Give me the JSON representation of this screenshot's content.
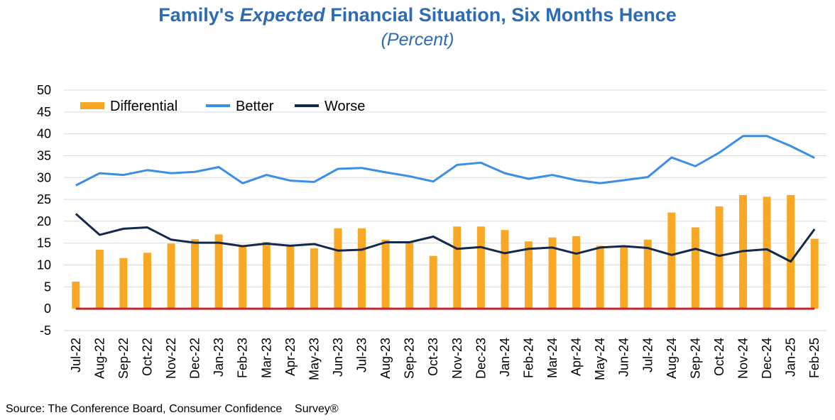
{
  "title_parts": {
    "prefix": "Family's ",
    "emphasis": "Expected",
    "suffix": " Financial Situation, Six Months Hence"
  },
  "subtitle": "(Percent)",
  "source": "Source: The Conference Board, Consumer Confidence    Survey®",
  "colors": {
    "title": "#2e6bb5",
    "differential": "#f9a825",
    "better": "#3a8ee6",
    "worse": "#13294b",
    "zero_line": "#c0282d",
    "grid": "#d9d9d9"
  },
  "chart_data": {
    "type": "bar",
    "title": "Family's Expected Financial Situation, Six Months Hence",
    "subtitle": "(Percent)",
    "xlabel": "",
    "ylabel": "",
    "ylim": [
      -5,
      50
    ],
    "yticks": [
      -5,
      0,
      5,
      10,
      15,
      20,
      25,
      30,
      35,
      40,
      45,
      50
    ],
    "grid": true,
    "legend_position": "top-left",
    "categories": [
      "Jul-22",
      "Aug-22",
      "Sep-22",
      "Oct-22",
      "Nov-22",
      "Dec-22",
      "Jan-23",
      "Feb-23",
      "Mar-23",
      "Apr-23",
      "May-23",
      "Jun-23",
      "Jul-23",
      "Aug-23",
      "Sep-23",
      "Oct-23",
      "Nov-23",
      "Dec-23",
      "Jan-24",
      "Feb-24",
      "Mar-24",
      "Apr-24",
      "May-24",
      "Jun-24",
      "Jul-24",
      "Aug-24",
      "Sep-24",
      "Oct-24",
      "Nov-24",
      "Dec-24",
      "Jan-25",
      "Feb-25"
    ],
    "series": [
      {
        "name": "Differential",
        "type": "bar",
        "values": [
          6.2,
          13.5,
          11.6,
          12.8,
          14.9,
          15.9,
          17.0,
          14.4,
          15.3,
          14.6,
          13.8,
          18.4,
          18.4,
          15.8,
          15.1,
          12.1,
          18.8,
          18.8,
          18.0,
          15.4,
          16.3,
          16.6,
          14.4,
          14.3,
          15.8,
          22.0,
          18.6,
          23.4,
          26.0,
          25.6,
          26.0,
          16.0
        ]
      },
      {
        "name": "Better",
        "type": "line",
        "values": [
          28.2,
          31.0,
          30.6,
          31.7,
          31.0,
          31.3,
          32.4,
          28.7,
          30.6,
          29.3,
          29.0,
          32.0,
          32.2,
          31.2,
          30.3,
          29.1,
          32.9,
          33.4,
          31.0,
          29.7,
          30.6,
          29.4,
          28.7,
          29.4,
          30.1,
          34.6,
          32.6,
          35.7,
          39.5,
          39.5,
          37.2,
          34.5
        ]
      },
      {
        "name": "Worse",
        "type": "line",
        "values": [
          21.7,
          16.9,
          18.3,
          18.6,
          15.8,
          15.1,
          15.1,
          14.3,
          14.9,
          14.4,
          14.8,
          13.3,
          13.5,
          15.2,
          15.2,
          16.5,
          13.7,
          14.1,
          12.7,
          13.7,
          14.0,
          12.6,
          14.0,
          14.3,
          13.9,
          12.3,
          13.7,
          12.1,
          13.2,
          13.6,
          10.8,
          18.2
        ]
      }
    ]
  }
}
